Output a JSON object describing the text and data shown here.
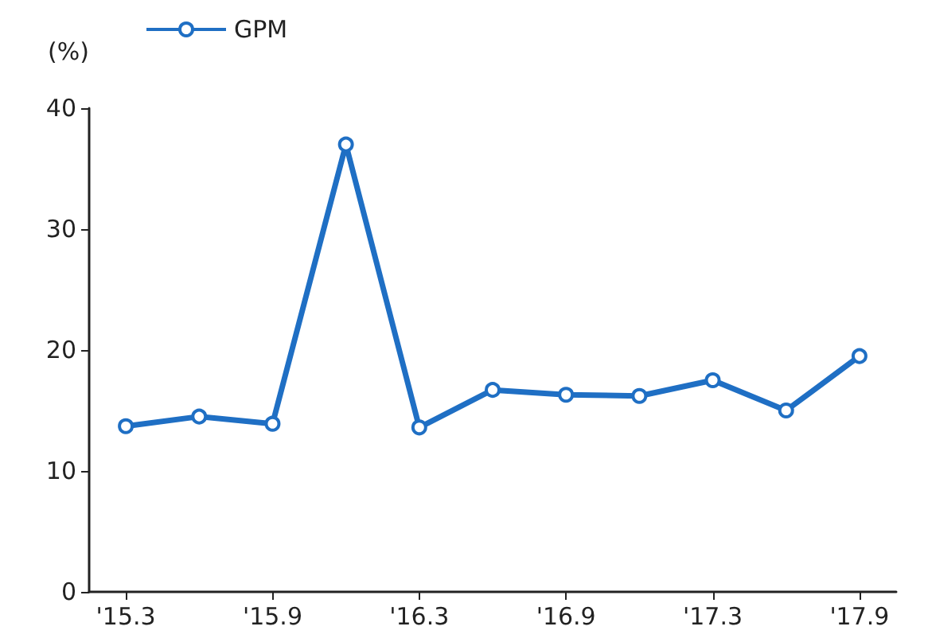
{
  "chart_data": {
    "type": "line",
    "ylabel": "(%)",
    "categories": [
      "'15.3",
      null,
      "'15.9",
      null,
      "'16.3",
      null,
      "'16.9",
      null,
      "'17.3",
      null,
      "'17.9"
    ],
    "series": [
      {
        "name": "GPM",
        "color": "#1f6fc4",
        "values": [
          13.7,
          14.5,
          13.9,
          37.0,
          13.6,
          16.7,
          16.3,
          16.2,
          17.5,
          15.0,
          19.5
        ]
      }
    ],
    "ylim": [
      0,
      40
    ],
    "yticks": [
      0,
      10,
      20,
      30,
      40
    ],
    "grid": false,
    "legend": "top left",
    "marker": "circle",
    "line_style": "solid"
  }
}
